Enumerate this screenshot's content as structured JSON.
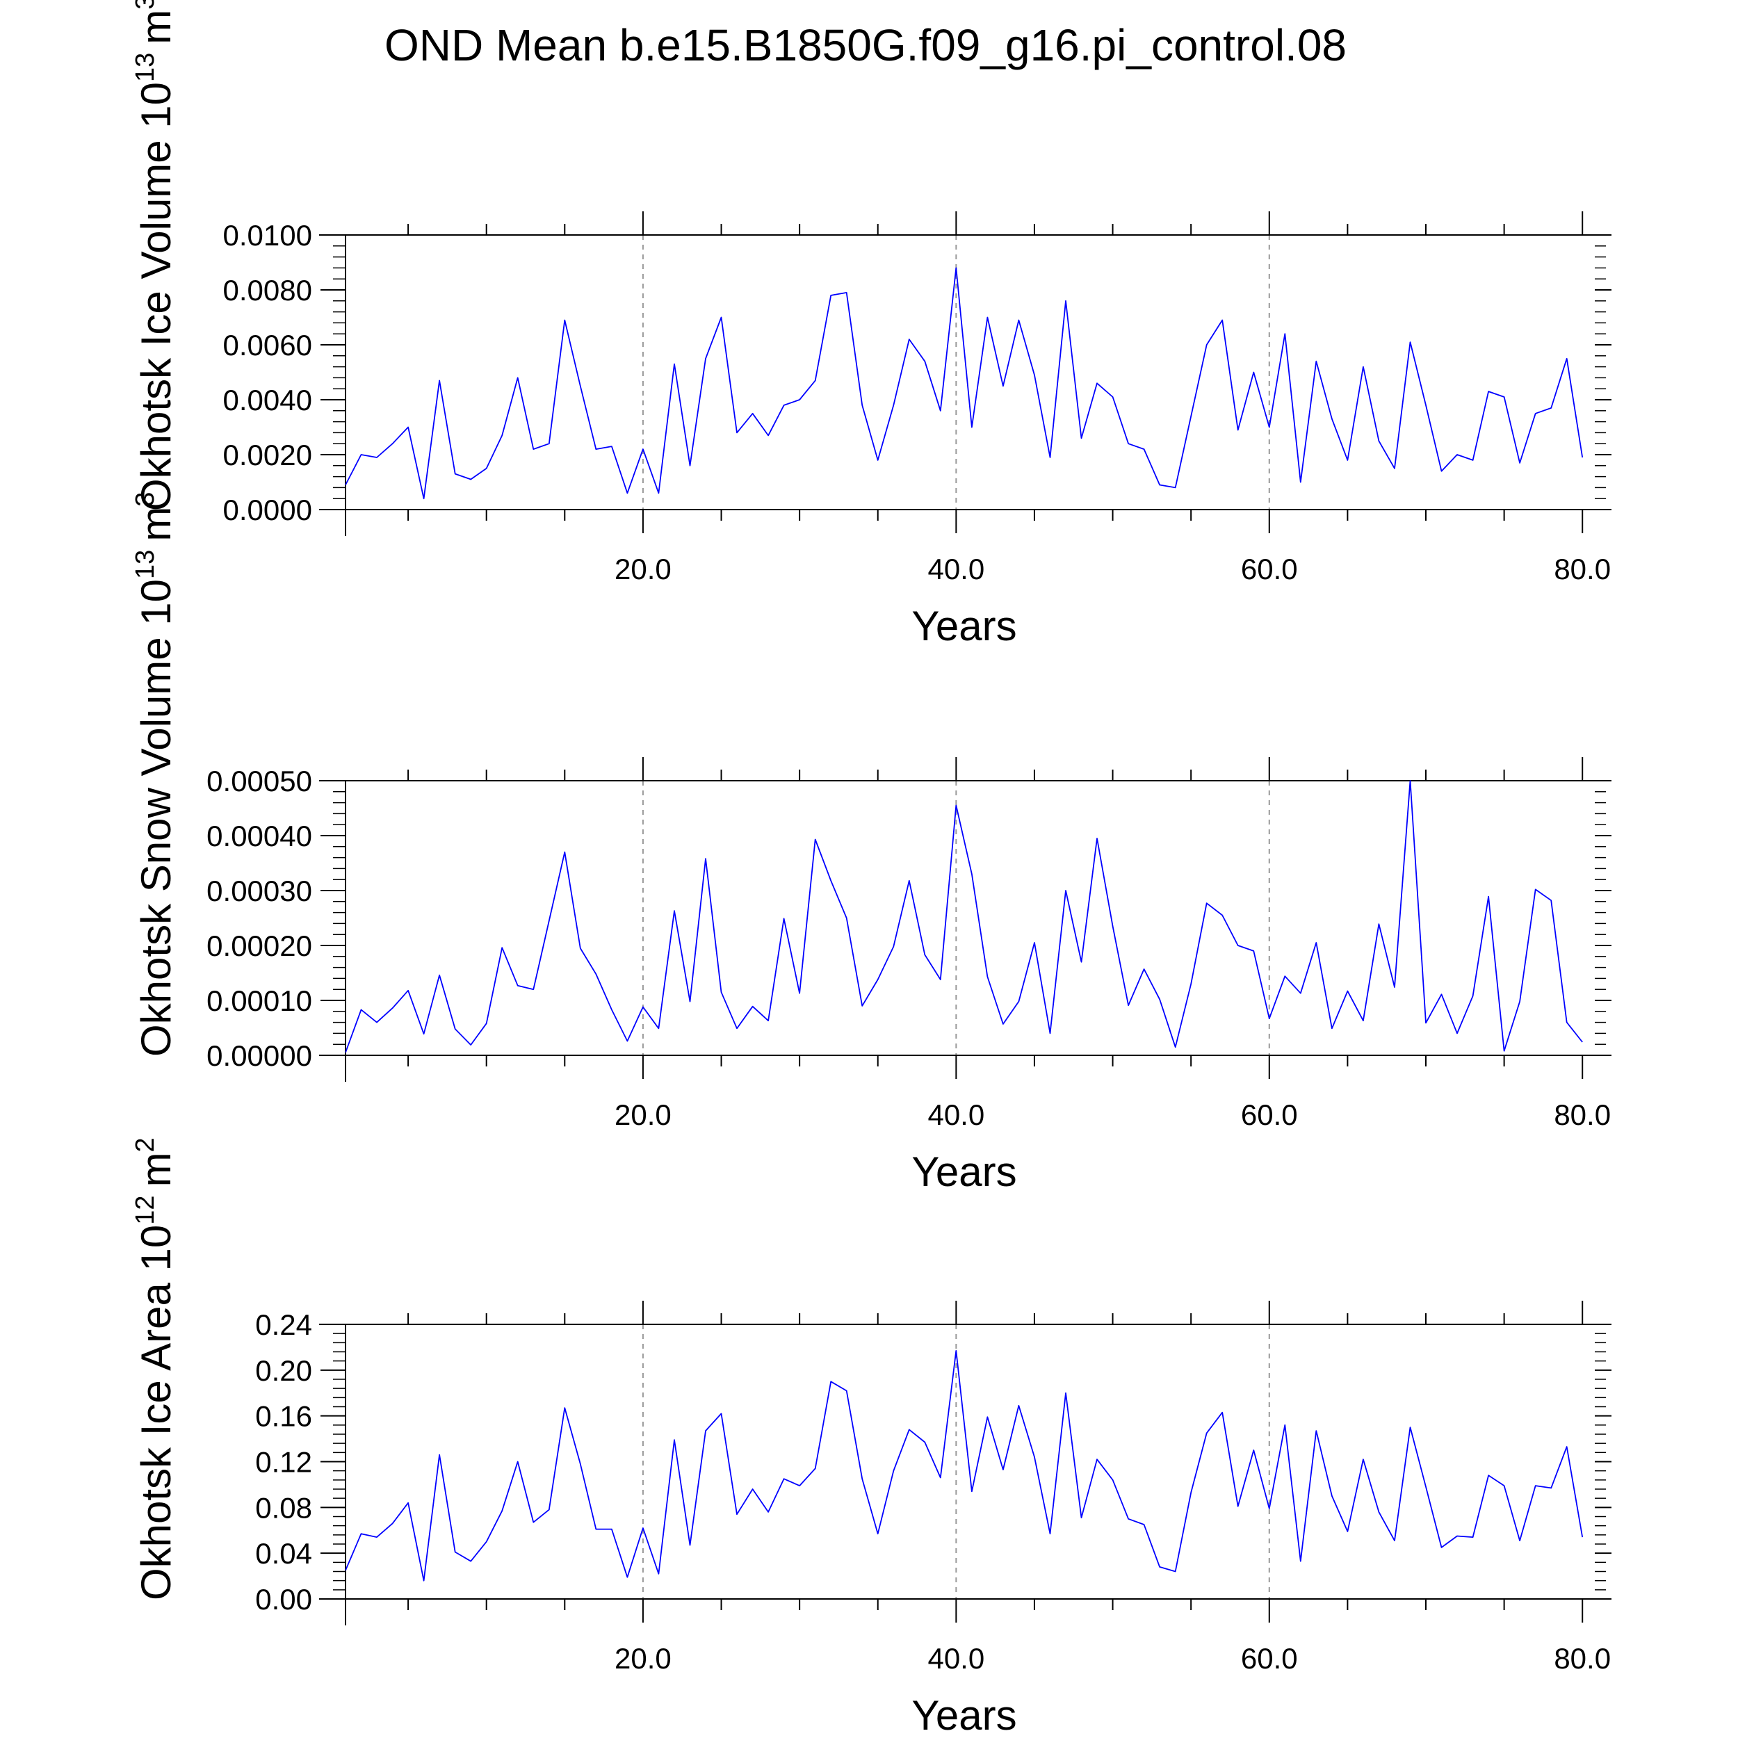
{
  "title": "OND Mean b.e15.B1850G.f09_g16.pi_control.08",
  "colors": {
    "series": "#0000ff",
    "axis": "#000000",
    "grid": "#999999"
  },
  "chart_data": [
    {
      "type": "line",
      "title": "OND Mean b.e15.B1850G.f09_g16.pi_control.08",
      "xlabel": "Years",
      "ylabel_main": "Okhotsk Ice Volume 10",
      "ylabel_exp": "13",
      "ylabel_unit": "m",
      "ylabel_unit_exp": "3",
      "xlim": [
        1,
        81.5
      ],
      "ylim": [
        0,
        0.01
      ],
      "x_ticks": [
        20,
        40,
        60,
        80
      ],
      "x_tick_labels": [
        "20.0",
        "40.0",
        "60.0",
        "80.0"
      ],
      "y_ticks": [
        0,
        0.002,
        0.004,
        0.006,
        0.008,
        0.01
      ],
      "y_tick_labels": [
        "0.0000",
        "0.0020",
        "0.0040",
        "0.0060",
        "0.0080",
        "0.0100"
      ],
      "grid_x": [
        20,
        40,
        60
      ],
      "series": [
        {
          "name": "Okhotsk Ice Volume",
          "x_start": 1,
          "values": [
            0.0009,
            0.002,
            0.0019,
            0.0024,
            0.003,
            0.0004,
            0.0047,
            0.0013,
            0.0011,
            0.0015,
            0.0027,
            0.0048,
            0.0022,
            0.0024,
            0.0069,
            0.0045,
            0.0022,
            0.0023,
            0.0006,
            0.0022,
            0.0006,
            0.0053,
            0.0016,
            0.0055,
            0.007,
            0.0028,
            0.0035,
            0.0027,
            0.0038,
            0.004,
            0.0047,
            0.0078,
            0.0079,
            0.0038,
            0.0018,
            0.0038,
            0.0062,
            0.0054,
            0.0036,
            0.0088,
            0.003,
            0.007,
            0.0045,
            0.0069,
            0.0049,
            0.0019,
            0.0076,
            0.0026,
            0.0046,
            0.0041,
            0.0024,
            0.0022,
            0.0009,
            0.0008,
            0.0034,
            0.006,
            0.0069,
            0.0029,
            0.005,
            0.003,
            0.0064,
            0.001,
            0.0054,
            0.0033,
            0.0018,
            0.0052,
            0.0025,
            0.0015,
            0.0061,
            0.0038,
            0.0014,
            0.002,
            0.0018,
            0.0043,
            0.0041,
            0.0017,
            0.0035,
            0.0037,
            0.0055,
            0.0019
          ]
        }
      ]
    },
    {
      "type": "line",
      "xlabel": "Years",
      "ylabel_main": "Okhotsk Snow Volume 10",
      "ylabel_exp": "13",
      "ylabel_unit": "m",
      "ylabel_unit_exp": "3",
      "xlim": [
        1,
        81.5
      ],
      "ylim": [
        0,
        0.0005
      ],
      "x_ticks": [
        20,
        40,
        60,
        80
      ],
      "x_tick_labels": [
        "20.0",
        "40.0",
        "60.0",
        "80.0"
      ],
      "y_ticks": [
        0,
        0.0001,
        0.0002,
        0.0003,
        0.0004,
        0.0005
      ],
      "y_tick_labels": [
        "0.00000",
        "0.00010",
        "0.00020",
        "0.00030",
        "0.00040",
        "0.00050"
      ],
      "grid_x": [
        20,
        40,
        60
      ],
      "series": [
        {
          "name": "Okhotsk Snow Volume",
          "x_start": 1,
          "values": [
            5e-06,
            8.3e-05,
            6e-05,
            8.6e-05,
            0.000118,
            3.9e-05,
            0.000146,
            4.8e-05,
            1.9e-05,
            5.8e-05,
            0.000196,
            0.000127,
            0.00012,
            0.000245,
            0.00037,
            0.000195,
            0.000148,
            8.3e-05,
            2.6e-05,
            8.8e-05,
            4.9e-05,
            0.000263,
            9.8e-05,
            0.000358,
            0.000115,
            4.9e-05,
            8.9e-05,
            6.3e-05,
            0.000249,
            0.000113,
            0.000393,
            0.000318,
            0.00025,
            9e-05,
            0.000138,
            0.000198,
            0.000318,
            0.000183,
            0.000138,
            0.000455,
            0.00033,
            0.000143,
            5.7e-05,
            9.8e-05,
            0.000205,
            4e-05,
            0.0003,
            0.00017,
            0.000395,
            0.000235,
            9.1e-05,
            0.000157,
            0.000102,
            1.5e-05,
            0.00013,
            0.000277,
            0.000255,
            0.0002,
            0.00019,
            6.7e-05,
            0.000144,
            0.000113,
            0.000205,
            4.9e-05,
            0.000117,
            6.3e-05,
            0.000239,
            0.000124,
            0.0005,
            5.9e-05,
            0.000111,
            4e-05,
            0.000108,
            0.000289,
            8e-06,
            9.8e-05,
            0.000302,
            0.000282,
            6e-05,
            2.4e-05
          ]
        }
      ]
    },
    {
      "type": "line",
      "xlabel": "Years",
      "ylabel_main": "Okhotsk Ice Area 10",
      "ylabel_exp": "12",
      "ylabel_unit": "m",
      "ylabel_unit_exp": "2",
      "xlim": [
        1,
        81.5
      ],
      "ylim": [
        0,
        0.24
      ],
      "x_ticks": [
        20,
        40,
        60,
        80
      ],
      "x_tick_labels": [
        "20.0",
        "40.0",
        "60.0",
        "80.0"
      ],
      "y_ticks": [
        0,
        0.04,
        0.08,
        0.12,
        0.16,
        0.2,
        0.24
      ],
      "y_tick_labels": [
        "0.00",
        "0.04",
        "0.08",
        "0.12",
        "0.16",
        "0.20",
        "0.24"
      ],
      "grid_x": [
        20,
        40,
        60
      ],
      "series": [
        {
          "name": "Okhotsk Ice Area",
          "x_start": 1,
          "values": [
            0.025,
            0.057,
            0.054,
            0.066,
            0.084,
            0.016,
            0.126,
            0.041,
            0.033,
            0.05,
            0.077,
            0.12,
            0.067,
            0.078,
            0.167,
            0.118,
            0.061,
            0.061,
            0.019,
            0.062,
            0.022,
            0.139,
            0.047,
            0.147,
            0.162,
            0.074,
            0.096,
            0.076,
            0.105,
            0.099,
            0.114,
            0.19,
            0.182,
            0.105,
            0.057,
            0.112,
            0.148,
            0.137,
            0.106,
            0.217,
            0.094,
            0.159,
            0.113,
            0.169,
            0.124,
            0.057,
            0.18,
            0.071,
            0.122,
            0.104,
            0.07,
            0.065,
            0.028,
            0.024,
            0.093,
            0.145,
            0.163,
            0.081,
            0.13,
            0.079,
            0.152,
            0.033,
            0.147,
            0.09,
            0.059,
            0.122,
            0.076,
            0.051,
            0.15,
            0.098,
            0.045,
            0.055,
            0.054,
            0.108,
            0.099,
            0.051,
            0.099,
            0.097,
            0.133,
            0.054
          ]
        }
      ]
    }
  ]
}
